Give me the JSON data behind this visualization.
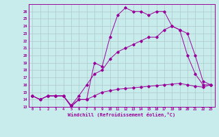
{
  "xlabel": "Windchill (Refroidissement éolien,°C)",
  "bg_color": "#c8ecec",
  "line_color": "#990099",
  "grid_color": "#b0c8c8",
  "xlim": [
    -0.5,
    23.5
  ],
  "ylim": [
    13,
    27
  ],
  "xticks": [
    0,
    1,
    2,
    3,
    4,
    5,
    6,
    7,
    8,
    9,
    10,
    11,
    12,
    13,
    14,
    15,
    16,
    17,
    18,
    19,
    20,
    21,
    22,
    23
  ],
  "yticks": [
    13,
    14,
    15,
    16,
    17,
    18,
    19,
    20,
    21,
    22,
    23,
    24,
    25,
    26
  ],
  "line1_x": [
    0,
    1,
    2,
    3,
    4,
    5,
    6,
    7,
    8,
    9,
    10,
    11,
    12,
    13,
    14,
    15,
    16,
    17,
    18,
    19,
    20,
    21,
    22,
    23
  ],
  "line1_y": [
    14.5,
    14.0,
    14.5,
    14.5,
    14.5,
    13.0,
    14.0,
    14.0,
    19.0,
    18.5,
    22.5,
    25.5,
    26.5,
    26.0,
    26.0,
    25.5,
    26.0,
    26.0,
    24.0,
    23.5,
    20.0,
    17.5,
    16.0,
    16.0
  ],
  "line2_x": [
    0,
    1,
    2,
    3,
    4,
    5,
    6,
    7,
    8,
    9,
    10,
    11,
    12,
    13,
    14,
    15,
    16,
    17,
    18,
    19,
    20,
    21,
    22,
    23
  ],
  "line2_y": [
    14.5,
    14.0,
    14.5,
    14.5,
    14.5,
    13.2,
    14.5,
    16.0,
    17.5,
    18.0,
    19.5,
    20.5,
    21.0,
    21.5,
    22.0,
    22.5,
    22.5,
    23.5,
    24.0,
    23.5,
    23.0,
    20.0,
    16.5,
    16.0
  ],
  "line3_x": [
    0,
    1,
    2,
    3,
    4,
    5,
    6,
    7,
    8,
    9,
    10,
    11,
    12,
    13,
    14,
    15,
    16,
    17,
    18,
    19,
    20,
    21,
    22,
    23
  ],
  "line3_y": [
    14.5,
    14.0,
    14.5,
    14.5,
    14.5,
    13.2,
    14.0,
    14.0,
    14.5,
    15.0,
    15.2,
    15.4,
    15.5,
    15.6,
    15.7,
    15.8,
    15.9,
    16.0,
    16.1,
    16.2,
    16.0,
    15.8,
    15.7,
    16.0
  ]
}
